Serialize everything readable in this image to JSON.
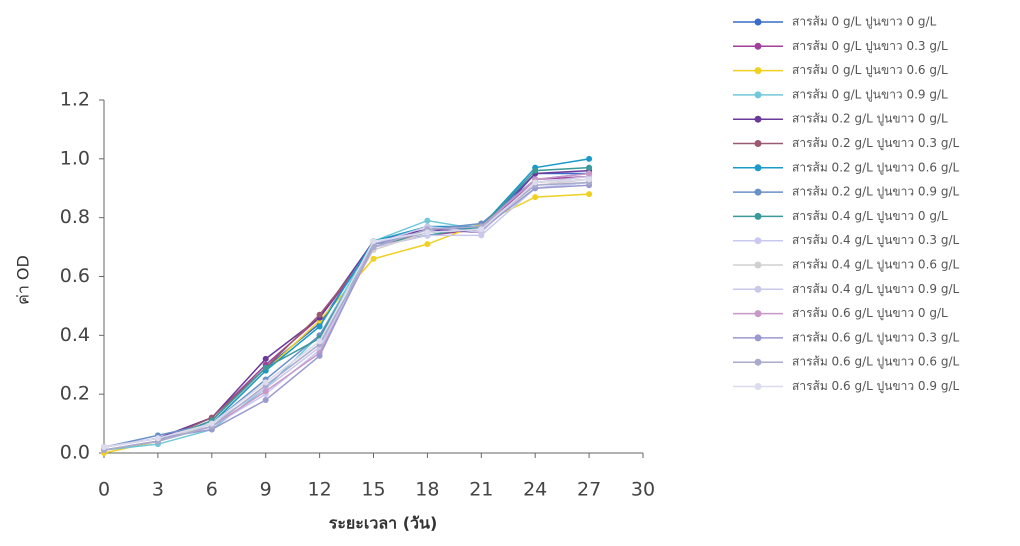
{
  "chart_data": {
    "type": "line",
    "xlabel": "ระยะเวลา (วัน)",
    "ylabel": "ค่า OD",
    "x": [
      0,
      3,
      6,
      9,
      12,
      15,
      18,
      21,
      24,
      27
    ],
    "xlim": [
      0,
      30
    ],
    "xticks": [
      0,
      3,
      6,
      9,
      12,
      15,
      18,
      21,
      24,
      27,
      30
    ],
    "ylim": [
      0,
      1.2
    ],
    "yticks": [
      {
        "value": 0,
        "label": "0.0"
      },
      0.2,
      0.4,
      0.6,
      0.8,
      {
        "value": 1,
        "label": "1.0"
      },
      1.2
    ],
    "series": [
      {
        "name": "สารส้ม 0 g/L ปูนขาว 0 g/L",
        "color": "#3a6cc8",
        "values": [
          0.01,
          0.04,
          0.11,
          0.29,
          0.44,
          0.71,
          0.75,
          0.77,
          0.95,
          0.95
        ]
      },
      {
        "name": "สารส้ม 0 g/L ปูนขาว 0.3 g/L",
        "color": "#a0409a",
        "values": [
          0.02,
          0.05,
          0.12,
          0.3,
          0.46,
          0.7,
          0.74,
          0.76,
          0.93,
          0.94
        ]
      },
      {
        "name": "สารส้ม 0 g/L ปูนขาว 0.6 g/L",
        "color": "#f0d020",
        "values": [
          0,
          0.04,
          0.1,
          0.28,
          0.45,
          0.66,
          0.71,
          0.78,
          0.87,
          0.88
        ]
      },
      {
        "name": "สารส้ม 0 g/L ปูนขาว 0.9 g/L",
        "color": "#70c8d8",
        "values": [
          0.01,
          0.03,
          0.08,
          0.22,
          0.4,
          0.72,
          0.79,
          0.76,
          0.9,
          0.92
        ]
      },
      {
        "name": "สารส้ม 0.2 g/L ปูนขาว 0 g/L",
        "color": "#6a3a9a",
        "values": [
          0.02,
          0.05,
          0.12,
          0.32,
          0.46,
          0.72,
          0.76,
          0.75,
          0.95,
          0.96
        ]
      },
      {
        "name": "สารส้ม 0.2 g/L ปูนขาว 0.3 g/L",
        "color": "#9a5a70",
        "values": [
          0.01,
          0.04,
          0.12,
          0.29,
          0.47,
          0.7,
          0.75,
          0.76,
          0.92,
          0.93
        ]
      },
      {
        "name": "สารส้ม 0.2 g/L ปูนขาว 0.6 g/L",
        "color": "#1a9ac8",
        "values": [
          0.01,
          0.04,
          0.1,
          0.28,
          0.43,
          0.72,
          0.77,
          0.77,
          0.97,
          1.0
        ]
      },
      {
        "name": "สารส้ม 0.2 g/L ปูนขาว 0.9 g/L",
        "color": "#6a90c8",
        "values": [
          0.02,
          0.06,
          0.1,
          0.25,
          0.4,
          0.7,
          0.76,
          0.78,
          0.93,
          0.95
        ]
      },
      {
        "name": "สารส้ม 0.4 g/L ปูนขาว 0 g/L",
        "color": "#3a9a9a",
        "values": [
          0.01,
          0.04,
          0.11,
          0.29,
          0.39,
          0.71,
          0.74,
          0.77,
          0.96,
          0.97
        ]
      },
      {
        "name": "สารส้ม 0.4 g/L ปูนขาว 0.3 g/L",
        "color": "#c8c8f0",
        "values": [
          0.02,
          0.05,
          0.09,
          0.2,
          0.35,
          0.7,
          0.74,
          0.74,
          0.9,
          0.92
        ]
      },
      {
        "name": "สารส้ม 0.4 g/L ปูนขาว 0.6 g/L",
        "color": "#d0d0d0",
        "values": [
          0.01,
          0.04,
          0.1,
          0.24,
          0.38,
          0.69,
          0.75,
          0.76,
          0.91,
          0.93
        ]
      },
      {
        "name": "สารส้ม 0.4 g/L ปูนขาว 0.9 g/L",
        "color": "#c8c8e8",
        "values": [
          0.02,
          0.05,
          0.1,
          0.22,
          0.36,
          0.71,
          0.77,
          0.75,
          0.92,
          0.94
        ]
      },
      {
        "name": "สารส้ม 0.6 g/L ปูนขาว 0 g/L",
        "color": "#c898c8",
        "values": [
          0.01,
          0.04,
          0.09,
          0.21,
          0.34,
          0.7,
          0.76,
          0.77,
          0.93,
          0.95
        ]
      },
      {
        "name": "สารส้ม 0.6 g/L ปูนขาว 0.3 g/L",
        "color": "#9a9ad0",
        "values": [
          0.02,
          0.05,
          0.08,
          0.18,
          0.33,
          0.71,
          0.75,
          0.76,
          0.9,
          0.91
        ]
      },
      {
        "name": "สารส้ม 0.6 g/L ปูนขาว 0.6 g/L",
        "color": "#aaaacc",
        "values": [
          0.01,
          0.04,
          0.09,
          0.23,
          0.37,
          0.7,
          0.76,
          0.77,
          0.91,
          0.92
        ]
      },
      {
        "name": "สารส้ม 0.6 g/L ปูนขาว 0.9 g/L",
        "color": "#dcdcee",
        "values": [
          0.02,
          0.05,
          0.1,
          0.24,
          0.38,
          0.72,
          0.75,
          0.76,
          0.92,
          0.93
        ]
      }
    ]
  }
}
